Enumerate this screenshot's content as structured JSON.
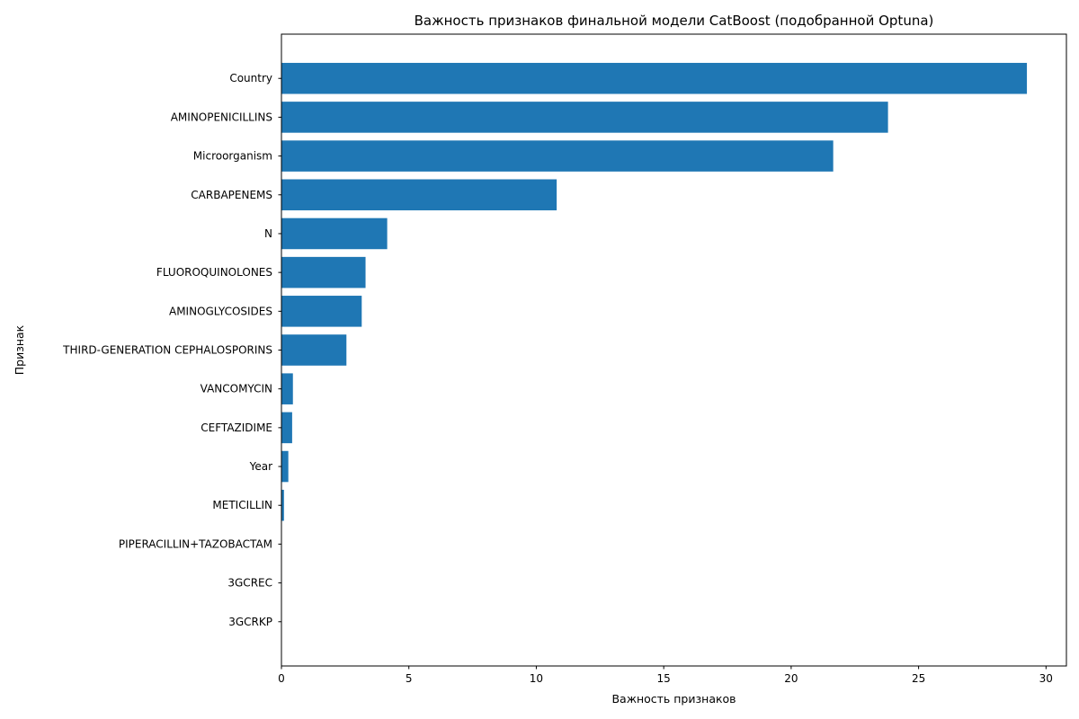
{
  "chart_data": {
    "type": "bar",
    "orientation": "horizontal",
    "title": "Важность признаков финальной модели CatBoost (подобранной Optuna)",
    "xlabel": "Важность признаков",
    "ylabel": "Признак",
    "xlim": [
      0,
      30.8
    ],
    "xticks": [
      0,
      5,
      10,
      15,
      20,
      25,
      30
    ],
    "grid": false,
    "bar_color": "#1f77b4",
    "categories": [
      "Country",
      "AMINOPENICILLINS",
      "Microorganism",
      "CARBAPENEMS",
      "N",
      "FLUOROQUINOLONES",
      "AMINOGLYCOSIDES",
      "THIRD-GENERATION CEPHALOSPORINS",
      "VANCOMYCIN",
      "CEFTAZIDIME",
      "Year",
      "METICILLIN",
      "PIPERACILLIN+TAZOBACTAM",
      "3GCREC",
      "3GCRKP"
    ],
    "values": [
      29.25,
      23.8,
      21.65,
      10.8,
      4.15,
      3.3,
      3.15,
      2.55,
      0.45,
      0.42,
      0.27,
      0.1,
      0.0,
      0.0,
      0.0
    ]
  }
}
